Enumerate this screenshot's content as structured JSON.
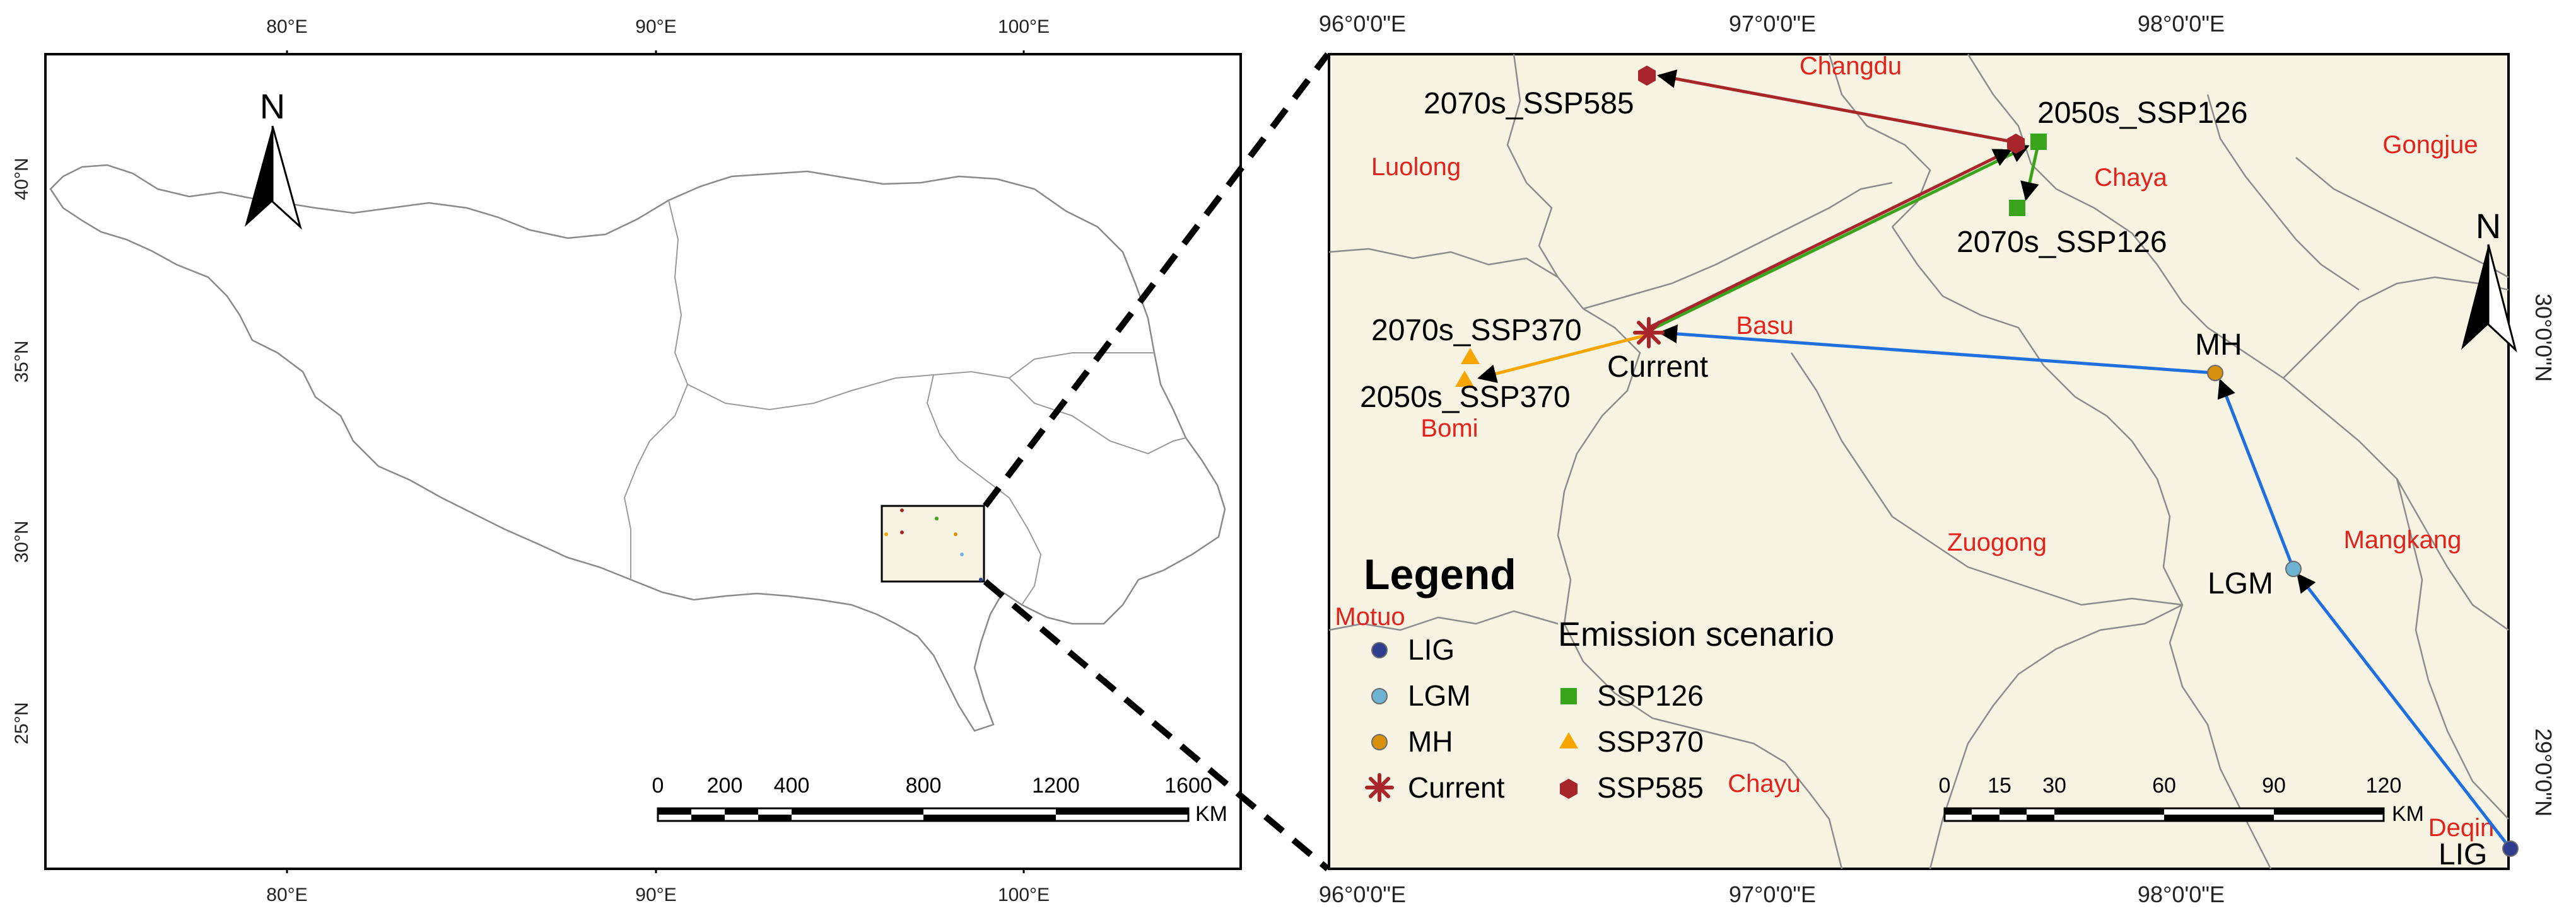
{
  "left_map": {
    "top_axis_labels": [
      "80°E",
      "90°E",
      "100°E"
    ],
    "bottom_axis_labels": [
      "80°E",
      "90°E",
      "100°E"
    ],
    "left_axis_labels": [
      "40°N",
      "35°N",
      "30°N",
      "25°N"
    ],
    "north_label": "N",
    "scale_bar": {
      "labels": [
        "0",
        "200",
        "400",
        "800",
        "1200",
        "1600"
      ],
      "unit": "KM"
    }
  },
  "right_map": {
    "top_axis_labels": [
      "96°0'0\"E",
      "97°0'0\"E",
      "98°0'0\"E"
    ],
    "bottom_axis_labels": [
      "96°0'0\"E",
      "97°0'0\"E",
      "98°0'0\"E"
    ],
    "right_axis_labels": [
      "30°0'0\"N",
      "29°0'0\"N"
    ],
    "north_label": "N",
    "place_names": [
      "Changdu",
      "Luolong",
      "Chaya",
      "Gongjue",
      "Basu",
      "Bomi",
      "Zuogong",
      "Mangkang",
      "Motuo",
      "Chayu",
      "Deqin"
    ],
    "point_labels": {
      "lig": "LIG",
      "lgm": "LGM",
      "mh": "MH",
      "current": "Current",
      "s2050_126": "2050s_SSP126",
      "s2070_126": "2070s_SSP126",
      "s2050_370": "2050s_SSP370",
      "s2070_370": "2070s_SSP370",
      "s2070_585": "2070s_SSP585"
    },
    "legend": {
      "title": "Legend",
      "subtitle": "Emission scenario",
      "periods": [
        "LIG",
        "LGM",
        "MH",
        "Current"
      ],
      "scenarios": [
        "SSP126",
        "SSP370",
        "SSP585"
      ]
    },
    "scale_bar": {
      "labels": [
        "0",
        "15",
        "30",
        "60",
        "90",
        "120"
      ],
      "unit": "KM"
    }
  },
  "colors": {
    "background_tint": "#f6f3e2",
    "place_name": "#e3231b",
    "past_path": "#1f6fe0",
    "ssp126": "#3aa41c",
    "ssp370": "#f7a600",
    "ssp585": "#a8262b",
    "lig": "#2e3d8f",
    "lgm": "#6fb3d2",
    "mh": "#d9900c",
    "current": "#a8262b",
    "border": "#9a9a9a"
  }
}
